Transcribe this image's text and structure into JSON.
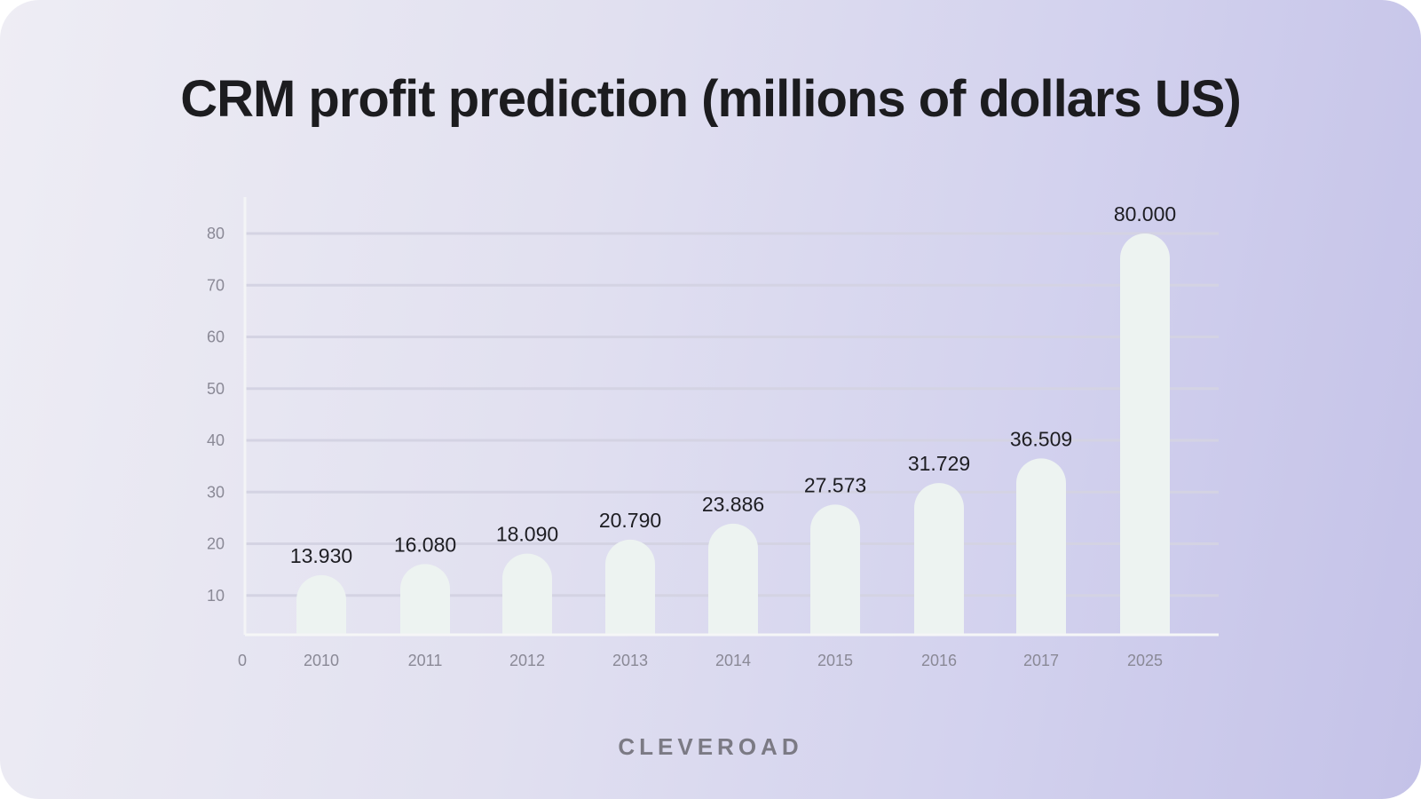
{
  "chart_data": {
    "type": "bar",
    "title": "CRM profit prediction (millions of dollars US)",
    "categories": [
      "2010",
      "2011",
      "2012",
      "2013",
      "2014",
      "2015",
      "2016",
      "2017",
      "2025"
    ],
    "values": [
      13.93,
      16.08,
      18.09,
      20.79,
      23.886,
      27.573,
      31.729,
      36.509,
      80.0
    ],
    "data_labels": [
      "13.930",
      "16.080",
      "18.090",
      "20.790",
      "23.886",
      "27.573",
      "31.729",
      "36.509",
      "80.000"
    ],
    "yticks": [
      10,
      20,
      30,
      40,
      50,
      60,
      70,
      80
    ],
    "origin_label": "0",
    "xlabel": "",
    "ylabel": "",
    "ylim": [
      0,
      80
    ],
    "grid": true,
    "bar_color": "#edf3f1",
    "grid_color": "#d4d3e3"
  },
  "brand": {
    "logo_text": "CLEVEROAD"
  }
}
